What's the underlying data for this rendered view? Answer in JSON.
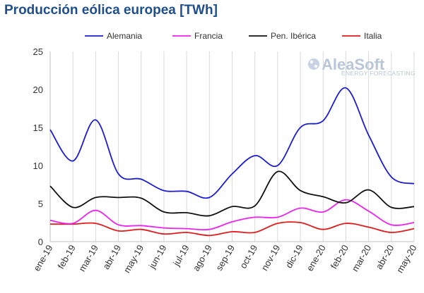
{
  "chart_data": {
    "type": "line",
    "title": "Producción eólica europea [TWh]",
    "categories": [
      "ene-19",
      "feb-19",
      "mar-19",
      "abr-19",
      "may-19",
      "jun-19",
      "jul-19",
      "ago-19",
      "sep-19",
      "oct-19",
      "nov-19",
      "dic-19",
      "ene-20",
      "feb-20",
      "mar-20",
      "abr-20",
      "may-20"
    ],
    "ylim": [
      0,
      25
    ],
    "yticks": [
      0,
      5,
      10,
      15,
      20,
      25
    ],
    "grid": "vertical",
    "legend_position": "top",
    "series": [
      {
        "name": "Alemania",
        "color": "#1c1cd6",
        "values": [
          14.7,
          10.6,
          16.0,
          8.9,
          8.2,
          6.7,
          6.6,
          5.8,
          8.9,
          11.3,
          10.0,
          15.0,
          15.9,
          20.2,
          14.0,
          8.5,
          7.6
        ]
      },
      {
        "name": "Francia",
        "color": "#ee22ee",
        "values": [
          2.8,
          2.4,
          4.1,
          2.2,
          2.1,
          1.8,
          1.7,
          1.6,
          2.6,
          3.2,
          3.2,
          4.4,
          3.9,
          5.5,
          4.0,
          2.2,
          2.5
        ]
      },
      {
        "name": "Pen. Ibérica",
        "color": "#111111",
        "values": [
          7.3,
          4.5,
          5.8,
          5.8,
          5.7,
          3.9,
          3.8,
          3.4,
          4.6,
          4.7,
          9.2,
          6.7,
          5.9,
          5.1,
          6.8,
          4.5,
          4.6
        ]
      },
      {
        "name": "Italia",
        "color": "#e31a1a",
        "values": [
          2.3,
          2.3,
          2.4,
          1.4,
          1.6,
          1.0,
          1.2,
          0.8,
          1.3,
          1.2,
          2.4,
          2.5,
          1.6,
          2.4,
          1.9,
          1.2,
          1.7
        ]
      }
    ]
  },
  "logo": {
    "main": "AleaSoft",
    "sub": "ENERGY FORECASTING"
  }
}
